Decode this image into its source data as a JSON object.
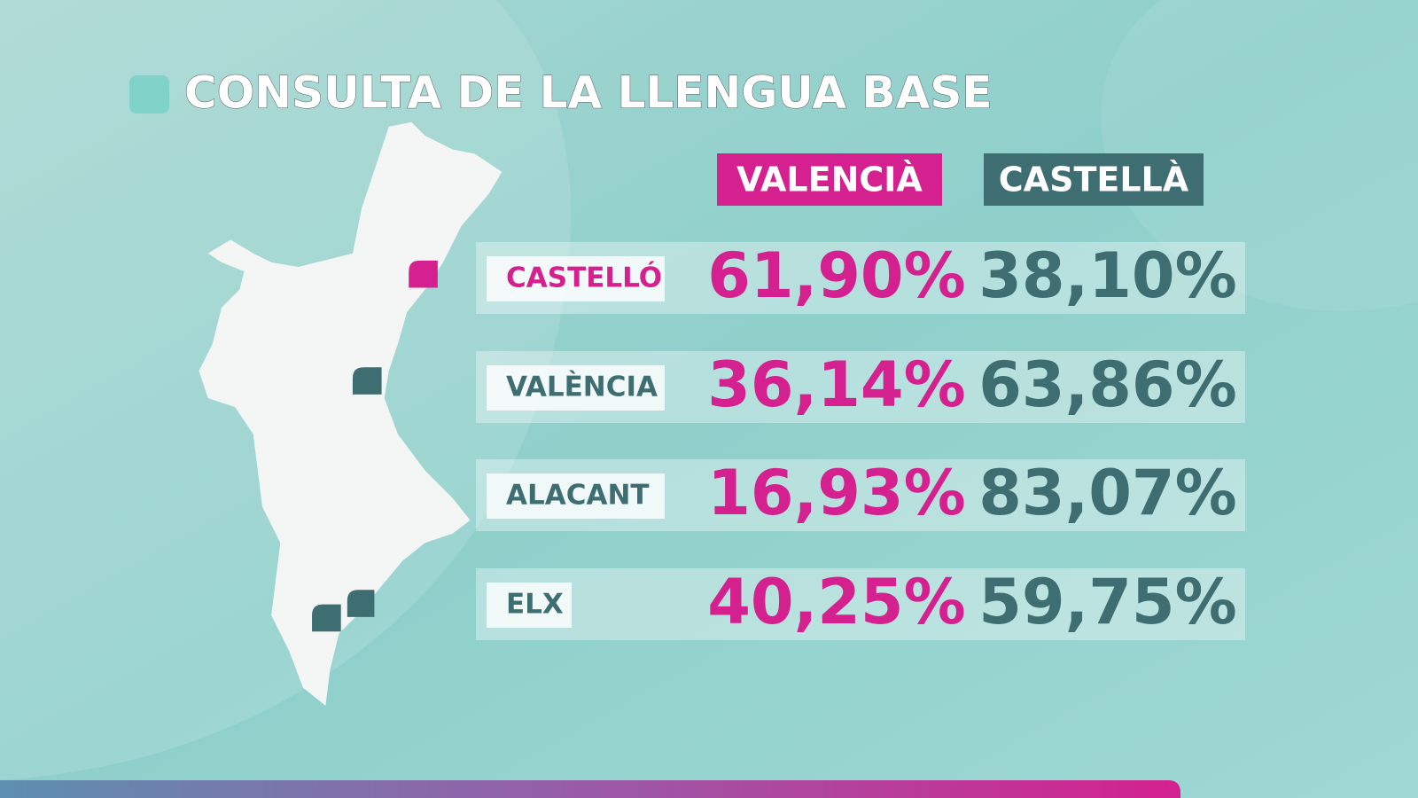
{
  "header": {
    "title": "CONSULTA DE LA LLENGUA BASE"
  },
  "table": {
    "columns": [
      "VALENCIÀ",
      "CASTELLÀ"
    ],
    "rows": [
      [
        "CASTELLÓ",
        "61,90%",
        "38,10%"
      ],
      [
        "VALÈNCIA",
        "36,14%",
        "63,86%"
      ],
      [
        "ALACANT",
        "16,93%",
        "83,07%"
      ],
      [
        "ELX",
        "40,25%",
        "59,75%"
      ]
    ]
  }
}
